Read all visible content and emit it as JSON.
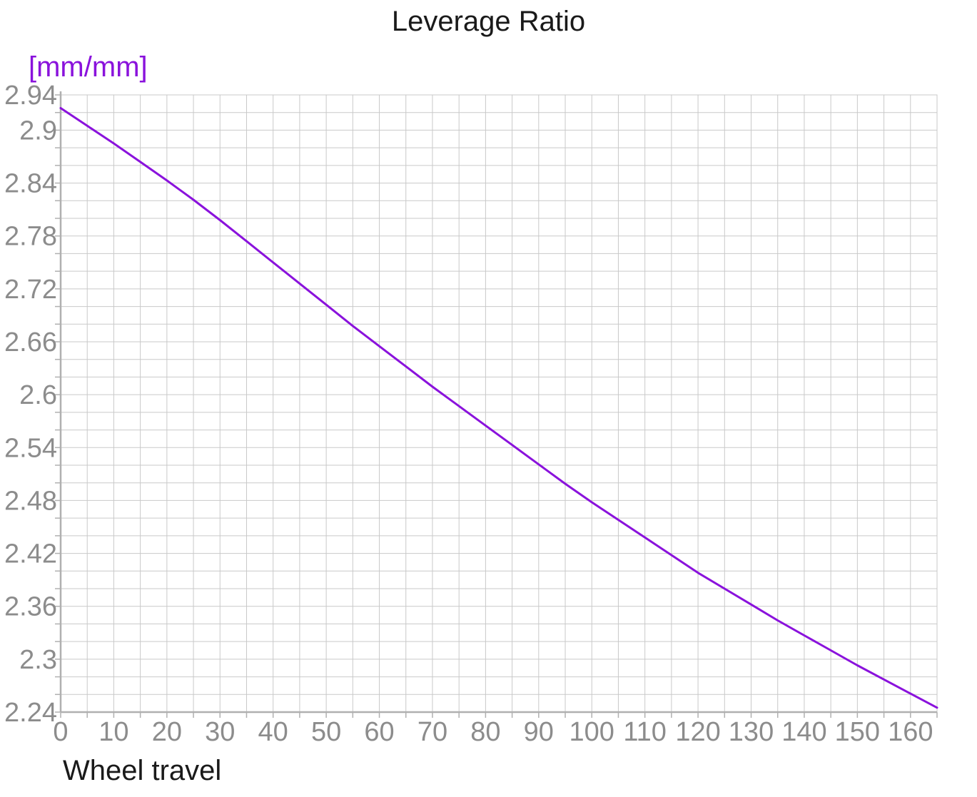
{
  "chart_data": {
    "type": "line",
    "title": "Leverage Ratio",
    "ylabel": "[mm/mm]",
    "xlabel": "Wheel travel",
    "xlim": [
      0,
      165
    ],
    "ylim": [
      2.24,
      2.94
    ],
    "grid": {
      "visible": true,
      "x_step": 5,
      "y_step": 0.02
    },
    "legend_position": "none",
    "x_ticks": [
      "0",
      "10",
      "20",
      "30",
      "40",
      "50",
      "60",
      "70",
      "80",
      "90",
      "100",
      "110",
      "120",
      "130",
      "140",
      "150",
      "160"
    ],
    "y_ticks": [
      "2.94",
      "2.9",
      "2.84",
      "2.78",
      "2.72",
      "2.66",
      "2.6",
      "2.54",
      "2.48",
      "2.42",
      "2.36",
      "2.3",
      "2.24"
    ],
    "series": [
      {
        "name": "Leverage Ratio",
        "x": [
          0,
          5,
          10,
          15,
          20,
          25,
          30,
          35,
          40,
          45,
          50,
          55,
          60,
          65,
          70,
          75,
          80,
          85,
          90,
          95,
          100,
          105,
          110,
          115,
          120,
          125,
          130,
          135,
          140,
          145,
          150,
          155,
          160,
          165
        ],
        "values": [
          2.925,
          2.905,
          2.885,
          2.864,
          2.843,
          2.821,
          2.798,
          2.774,
          2.75,
          2.726,
          2.702,
          2.678,
          2.655,
          2.632,
          2.609,
          2.587,
          2.565,
          2.543,
          2.521,
          2.499,
          2.478,
          2.458,
          2.438,
          2.418,
          2.398,
          2.38,
          2.362,
          2.344,
          2.327,
          2.31,
          2.293,
          2.277,
          2.261,
          2.245
        ]
      }
    ],
    "colors": {
      "curve": "#8a12dc",
      "ylabel_text": "#8a12dc",
      "title_text": "#1a1a1a",
      "xlabel_text": "#1a1a1a",
      "grid": "#c9c9c9",
      "axis": "#b0b0b0",
      "tick_labels": "#8c8c8c",
      "background": "#ffffff"
    }
  }
}
